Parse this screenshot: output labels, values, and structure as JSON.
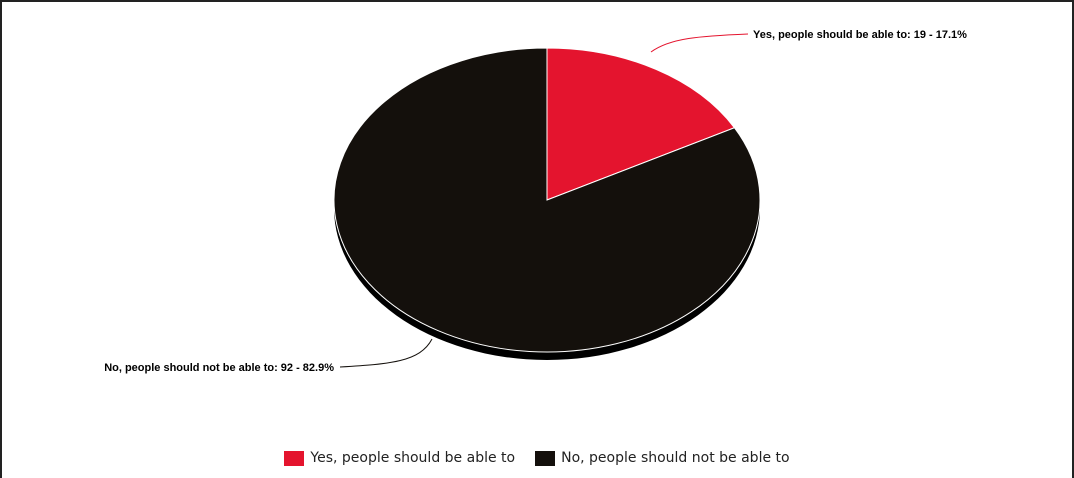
{
  "chart_data": {
    "type": "pie",
    "slices": [
      {
        "label": "Yes, people should be able to",
        "value": 19,
        "percent": 17.1,
        "color": "#e4142e",
        "callout": "Yes, people should be able to: 19 - 17.1%"
      },
      {
        "label": "No, people should not be able to",
        "value": 92,
        "percent": 82.9,
        "color": "#14100c",
        "callout": "No, people should not be able to: 92 - 82.9%"
      }
    ],
    "legend": {
      "position": "bottom"
    }
  }
}
